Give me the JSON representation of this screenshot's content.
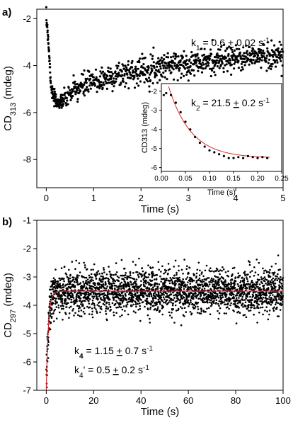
{
  "chart_data": [
    {
      "panel": "a)",
      "type": "scatter",
      "xlabel": "Time (s)",
      "ylabel_main": "CD",
      "ylabel_sub": "313",
      "ylabel_unit": " (mdeg)",
      "xlim": [
        -0.2,
        5
      ],
      "ylim": [
        -9.2,
        -1.6
      ],
      "xticks": [
        0,
        1,
        2,
        3,
        4,
        5
      ],
      "yticks": [
        -2,
        -4,
        -6,
        -8
      ],
      "annotation": "k1 = 0.6 ± 0.02 s-1",
      "point_color": "#000000",
      "series": [
        {
          "values": [
            [
              0.0,
              -2.1
            ],
            [
              0.02,
              -2.3
            ],
            [
              0.04,
              -2.8
            ],
            [
              0.06,
              -3.5
            ],
            [
              0.08,
              -4.2
            ],
            [
              0.1,
              -4.8
            ],
            [
              0.13,
              -5.2
            ],
            [
              0.16,
              -5.4
            ],
            [
              0.2,
              -5.5
            ],
            [
              0.3,
              -5.6
            ],
            [
              0.5,
              -5.2
            ],
            [
              0.75,
              -4.9
            ],
            [
              1.0,
              -4.7
            ],
            [
              1.5,
              -4.4
            ],
            [
              2.0,
              -4.2
            ],
            [
              2.5,
              -4.0
            ],
            [
              3.0,
              -3.9
            ],
            [
              3.5,
              -3.8
            ],
            [
              4.0,
              -3.7
            ],
            [
              4.5,
              -3.6
            ],
            [
              5.0,
              -3.55
            ]
          ]
        }
      ],
      "inset": {
        "type": "scatter",
        "xlabel": "Time (s)",
        "ylabel": "CD313 (mdeg)",
        "xlim": [
          0.0,
          0.25
        ],
        "ylim": [
          -6.2,
          -1.6
        ],
        "xticks": [
          "0.00",
          "0.05",
          "0.10",
          "0.15",
          "0.20",
          "0.25"
        ],
        "yticks": [
          -2,
          -3,
          -4,
          -5,
          -6
        ],
        "annotation": "k2 = 21.5 ± 0.2 s-1",
        "fit_color": "#d62728",
        "values": [
          [
            0.005,
            -2.2
          ],
          [
            0.01,
            -2.1
          ],
          [
            0.02,
            -2.2
          ],
          [
            0.03,
            -2.6
          ],
          [
            0.04,
            -3.1
          ],
          [
            0.05,
            -3.6
          ],
          [
            0.06,
            -4.0
          ],
          [
            0.07,
            -4.4
          ],
          [
            0.08,
            -4.7
          ],
          [
            0.09,
            -4.9
          ],
          [
            0.1,
            -5.1
          ],
          [
            0.11,
            -5.2
          ],
          [
            0.12,
            -5.3
          ],
          [
            0.13,
            -5.4
          ],
          [
            0.14,
            -5.5
          ],
          [
            0.15,
            -5.5
          ],
          [
            0.16,
            -5.45
          ],
          [
            0.17,
            -5.5
          ],
          [
            0.18,
            -5.4
          ],
          [
            0.19,
            -5.45
          ],
          [
            0.2,
            -5.5
          ],
          [
            0.21,
            -5.45
          ],
          [
            0.22,
            -5.5
          ]
        ]
      }
    },
    {
      "panel": "b)",
      "type": "scatter",
      "xlabel": "Time (s)",
      "ylabel_main": "CD",
      "ylabel_sub": "297",
      "ylabel_unit": " (mdeg)",
      "xlim": [
        -4,
        100
      ],
      "ylim": [
        -7,
        -1
      ],
      "xticks": [
        0,
        20,
        40,
        60,
        80,
        100
      ],
      "yticks": [
        -1,
        -2,
        -3,
        -4,
        -5,
        -6,
        -7
      ],
      "annotations": [
        "k4 = 1.15 ± 0.7 s-1",
        "k4' = 0.5 ± 0.2 s-1"
      ],
      "point_color": "#000000",
      "fit_color": "#d62728",
      "series": [
        {
          "values": [
            [
              0,
              -6.8
            ],
            [
              0.5,
              -5.5
            ],
            [
              1,
              -4.6
            ],
            [
              2,
              -3.9
            ],
            [
              3,
              -3.65
            ],
            [
              5,
              -3.52
            ],
            [
              10,
              -3.5
            ],
            [
              20,
              -3.5
            ],
            [
              40,
              -3.5
            ],
            [
              60,
              -3.5
            ],
            [
              80,
              -3.5
            ],
            [
              100,
              -3.5
            ]
          ]
        }
      ]
    }
  ]
}
